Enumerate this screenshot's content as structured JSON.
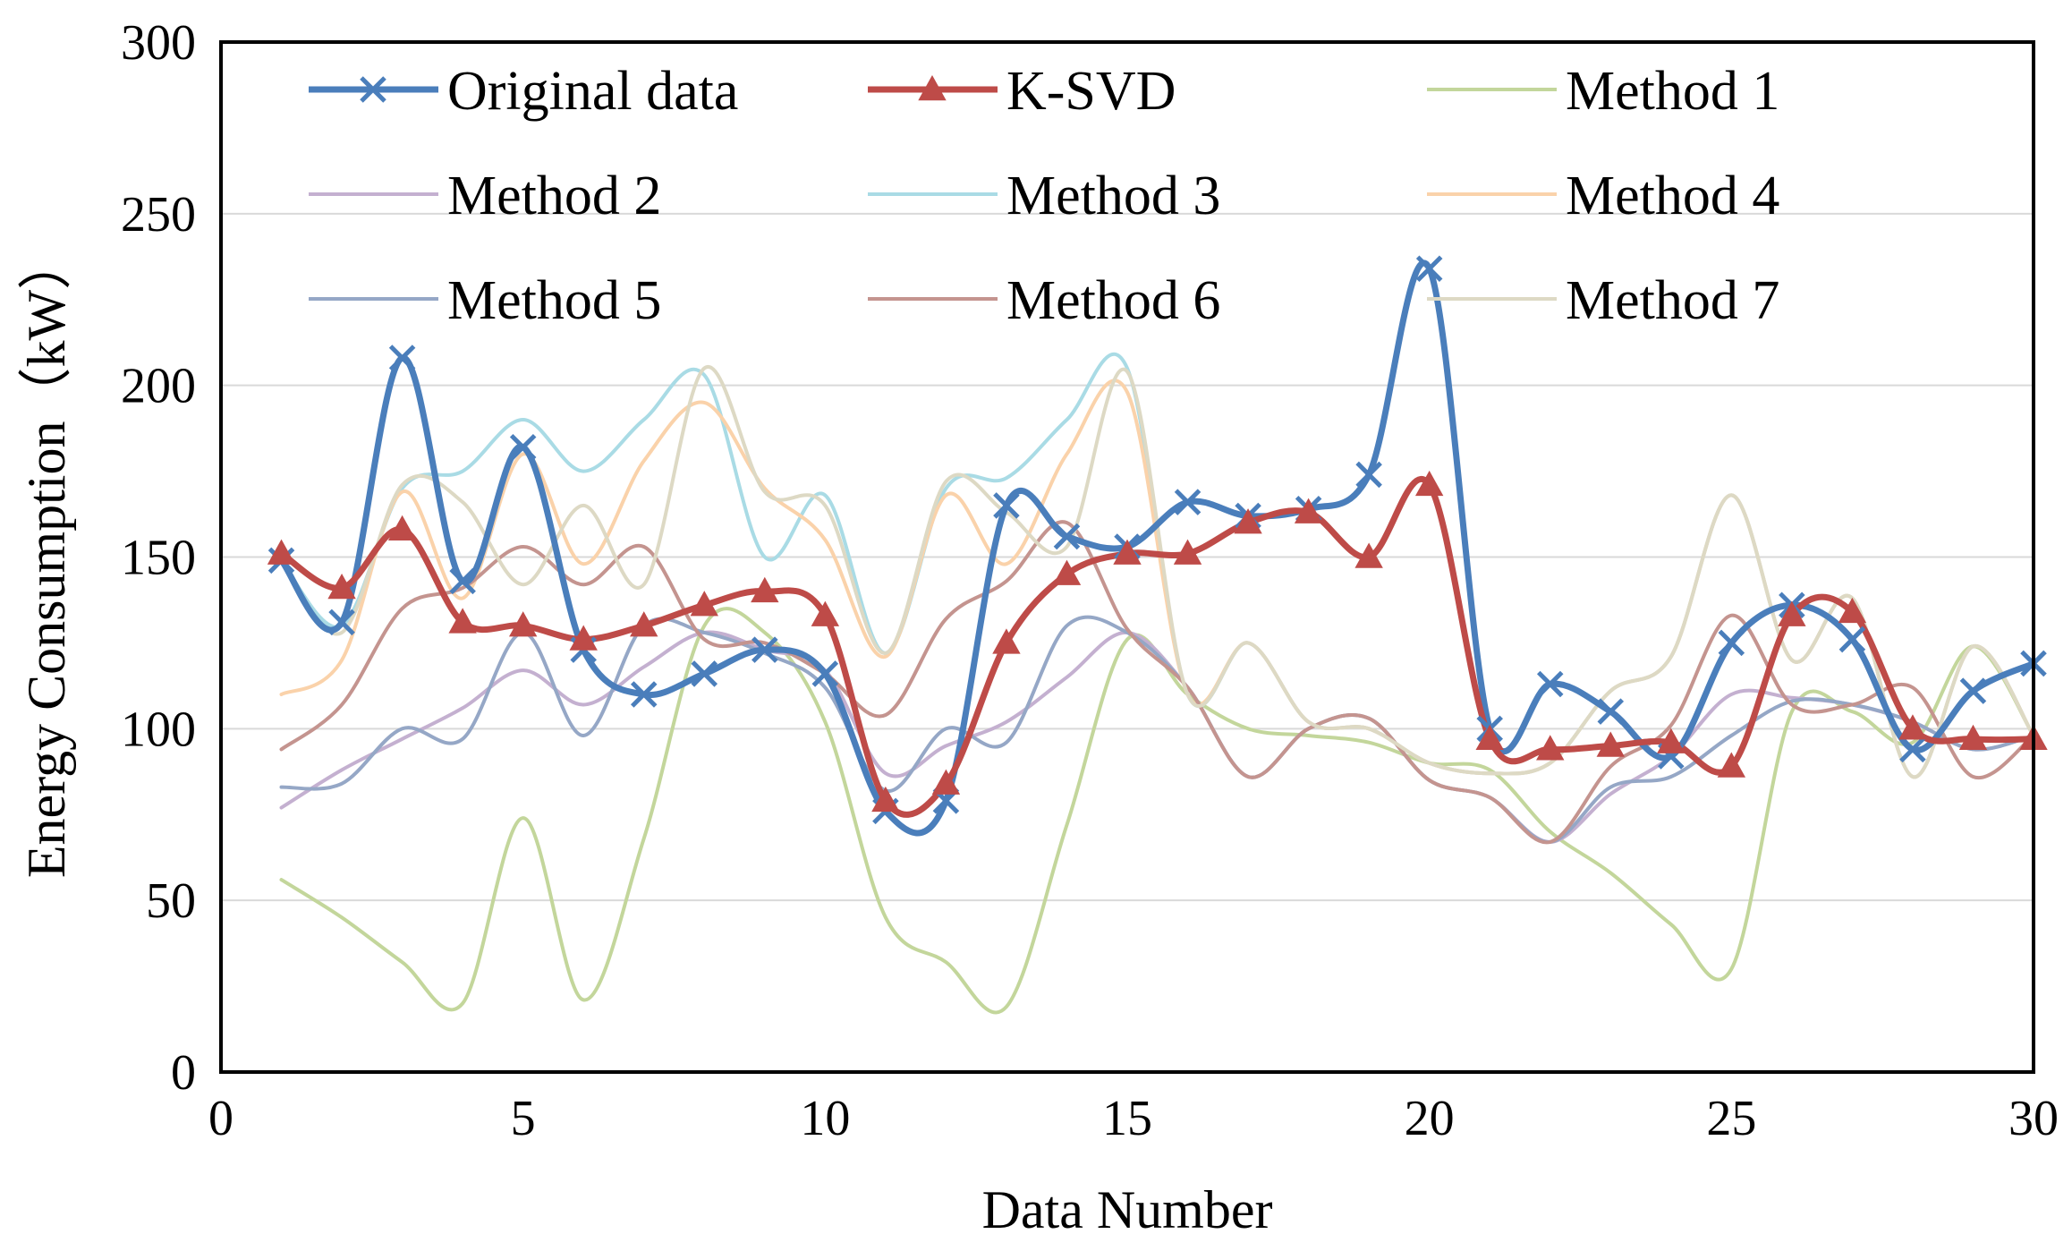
{
  "chart_data": {
    "type": "line",
    "title": "",
    "xlabel": "Data Number",
    "ylabel": "Energy Consumption（kW）",
    "xlim": [
      0,
      30
    ],
    "ylim": [
      0,
      300
    ],
    "xticks": [
      0,
      5,
      10,
      15,
      20,
      25,
      30
    ],
    "yticks": [
      0,
      50,
      100,
      150,
      200,
      250,
      300
    ],
    "grid": "horizontal",
    "legend_position": "top",
    "x": [
      1,
      2,
      3,
      4,
      5,
      6,
      7,
      8,
      9,
      10,
      11,
      12,
      13,
      14,
      15,
      16,
      17,
      18,
      19,
      20,
      21,
      22,
      23,
      24,
      25,
      26,
      27,
      28,
      29,
      30
    ],
    "series": [
      {
        "name": "Original data",
        "color": "#4a7ebb",
        "marker": "x",
        "emphasis": true,
        "values": [
          149,
          131,
          208,
          143,
          182,
          123,
          110,
          116,
          123,
          116,
          76,
          79,
          165,
          156,
          153,
          166,
          162,
          164,
          174,
          234,
          100,
          113,
          105,
          92,
          125,
          136,
          126,
          94,
          111,
          119
        ]
      },
      {
        "name": "K-SVD",
        "color": "#be4b48",
        "marker": "triangle",
        "emphasis": true,
        "values": [
          151,
          141,
          158,
          131,
          130,
          126,
          130,
          136,
          140,
          133,
          79,
          84,
          125,
          145,
          151,
          151,
          160,
          163,
          150,
          171,
          97,
          94,
          95,
          96,
          89,
          133,
          134,
          100,
          97,
          97
        ]
      },
      {
        "name": "Method 1",
        "color": "#c3d69b",
        "values": [
          56,
          45,
          32,
          20,
          74,
          21,
          68,
          130,
          128,
          102,
          45,
          32,
          19,
          72,
          126,
          110,
          100,
          98,
          96,
          90,
          88,
          70,
          58,
          43,
          30,
          105,
          105,
          96,
          124,
          98
        ]
      },
      {
        "name": "Method 2",
        "color": "#c4b0d0",
        "values": [
          77,
          88,
          97,
          106,
          117,
          107,
          118,
          128,
          123,
          117,
          87,
          95,
          102,
          115,
          128,
          112,
          86,
          100,
          103,
          85,
          80,
          67,
          81,
          92,
          110,
          109,
          107,
          102,
          94,
          98
        ]
      },
      {
        "name": "Method 3",
        "color": "#a9dbe5",
        "values": [
          149,
          130,
          170,
          175,
          190,
          175,
          190,
          203,
          150,
          168,
          122,
          170,
          173,
          190,
          205,
          110,
          125,
          102,
          100,
          90,
          87,
          90,
          111,
          121,
          168,
          120,
          138,
          86,
          124,
          98
        ]
      },
      {
        "name": "Method 4",
        "color": "#fad2aa",
        "values": [
          110,
          120,
          169,
          138,
          180,
          148,
          178,
          195,
          170,
          155,
          121,
          168,
          148,
          180,
          198,
          110,
          125,
          102,
          100,
          90,
          87,
          90,
          111,
          121,
          168,
          120,
          138,
          86,
          124,
          98
        ]
      },
      {
        "name": "Method 5",
        "color": "#95a7c6",
        "values": [
          83,
          84,
          100,
          97,
          128,
          98,
          130,
          128,
          122,
          112,
          82,
          100,
          96,
          130,
          128,
          112,
          86,
          100,
          103,
          85,
          80,
          67,
          83,
          86,
          98,
          108,
          107,
          102,
          94,
          98
        ]
      },
      {
        "name": "Method 6",
        "color": "#c4948f",
        "values": [
          94,
          107,
          135,
          141,
          153,
          142,
          153,
          126,
          125,
          116,
          104,
          132,
          143,
          160,
          129,
          112,
          86,
          100,
          103,
          85,
          80,
          67,
          89,
          101,
          133,
          107,
          107,
          112,
          86,
          98
        ]
      },
      {
        "name": "Method 7",
        "color": "#ddd9c4",
        "values": [
          149,
          128,
          171,
          166,
          142,
          165,
          142,
          205,
          169,
          165,
          122,
          172,
          163,
          153,
          204,
          110,
          125,
          102,
          100,
          90,
          87,
          90,
          111,
          121,
          168,
          120,
          138,
          86,
          124,
          98
        ]
      }
    ]
  }
}
